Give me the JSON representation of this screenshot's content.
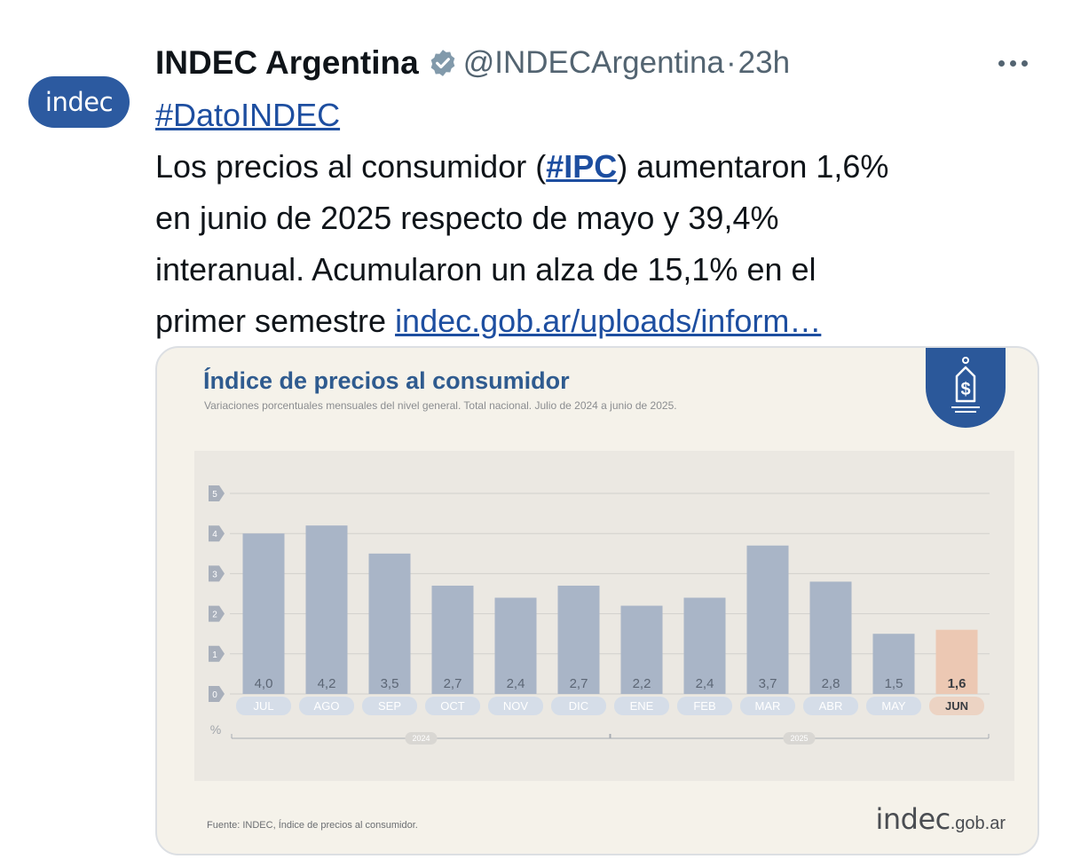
{
  "tweet": {
    "author_name": "INDEC Argentina",
    "handle": "@INDECArgentina",
    "separator": "·",
    "time": "23h",
    "avatar_text": "indec",
    "hashtag": "#DatoINDEC",
    "line1_pre": "Los precios al consumidor (",
    "line1_tag": "#IPC",
    "line1_post": ") aumentaron 1,6%",
    "line2": "en junio de 2025 respecto de mayo y 39,4%",
    "line3": "interanual. Acumularon un alza de 15,1% en el",
    "line4_pre": "primer semestre ",
    "line4_link": "indec.gob.ar/uploads/inform…"
  },
  "card": {
    "title": "Índice de precios al consumidor",
    "subtitle": "Variaciones porcentuales mensuales del nivel general. Total nacional. Julio de 2024 a junio de 2025.",
    "source": "Fuente: INDEC, Índice de precios al consumidor.",
    "brand_main": "indec",
    "brand_suffix": ".gob.ar"
  },
  "chart_data": {
    "type": "bar",
    "title": "Índice de precios al consumidor",
    "subtitle": "Variaciones porcentuales mensuales del nivel general. Total nacional. Julio de 2024 a junio de 2025.",
    "ylabel": "%",
    "ylim": [
      0,
      5
    ],
    "yticks": [
      "0",
      "1",
      "2",
      "3",
      "4",
      "5"
    ],
    "categories": [
      "JUL",
      "AGO",
      "SEP",
      "OCT",
      "NOV",
      "DIC",
      "ENE",
      "FEB",
      "MAR",
      "ABR",
      "MAY",
      "JUN"
    ],
    "values": [
      4.0,
      4.2,
      3.5,
      2.7,
      2.4,
      2.7,
      2.2,
      2.4,
      3.7,
      2.8,
      1.5,
      1.6
    ],
    "value_labels": [
      "4,0",
      "4,2",
      "3,5",
      "2,7",
      "2,4",
      "2,7",
      "2,2",
      "2,4",
      "3,7",
      "2,8",
      "1,5",
      "1,6"
    ],
    "year_groups": [
      {
        "label": "2024",
        "from": 0,
        "to": 5
      },
      {
        "label": "2025",
        "from": 6,
        "to": 11
      }
    ],
    "highlight_index": 11,
    "colors": {
      "bar": "#a9b5c7",
      "bar_highlight": "#ecc8b3",
      "label_pill": "#d5dde8",
      "label_pill_highlight": "#ecd3c3",
      "grid": "#d2d0cc"
    },
    "grid": true,
    "legend": "none"
  },
  "colors": {
    "link": "#1d4ea0",
    "brand_blue": "#2c5aa0",
    "title_blue": "#2f5b8f",
    "muted": "#536471"
  }
}
